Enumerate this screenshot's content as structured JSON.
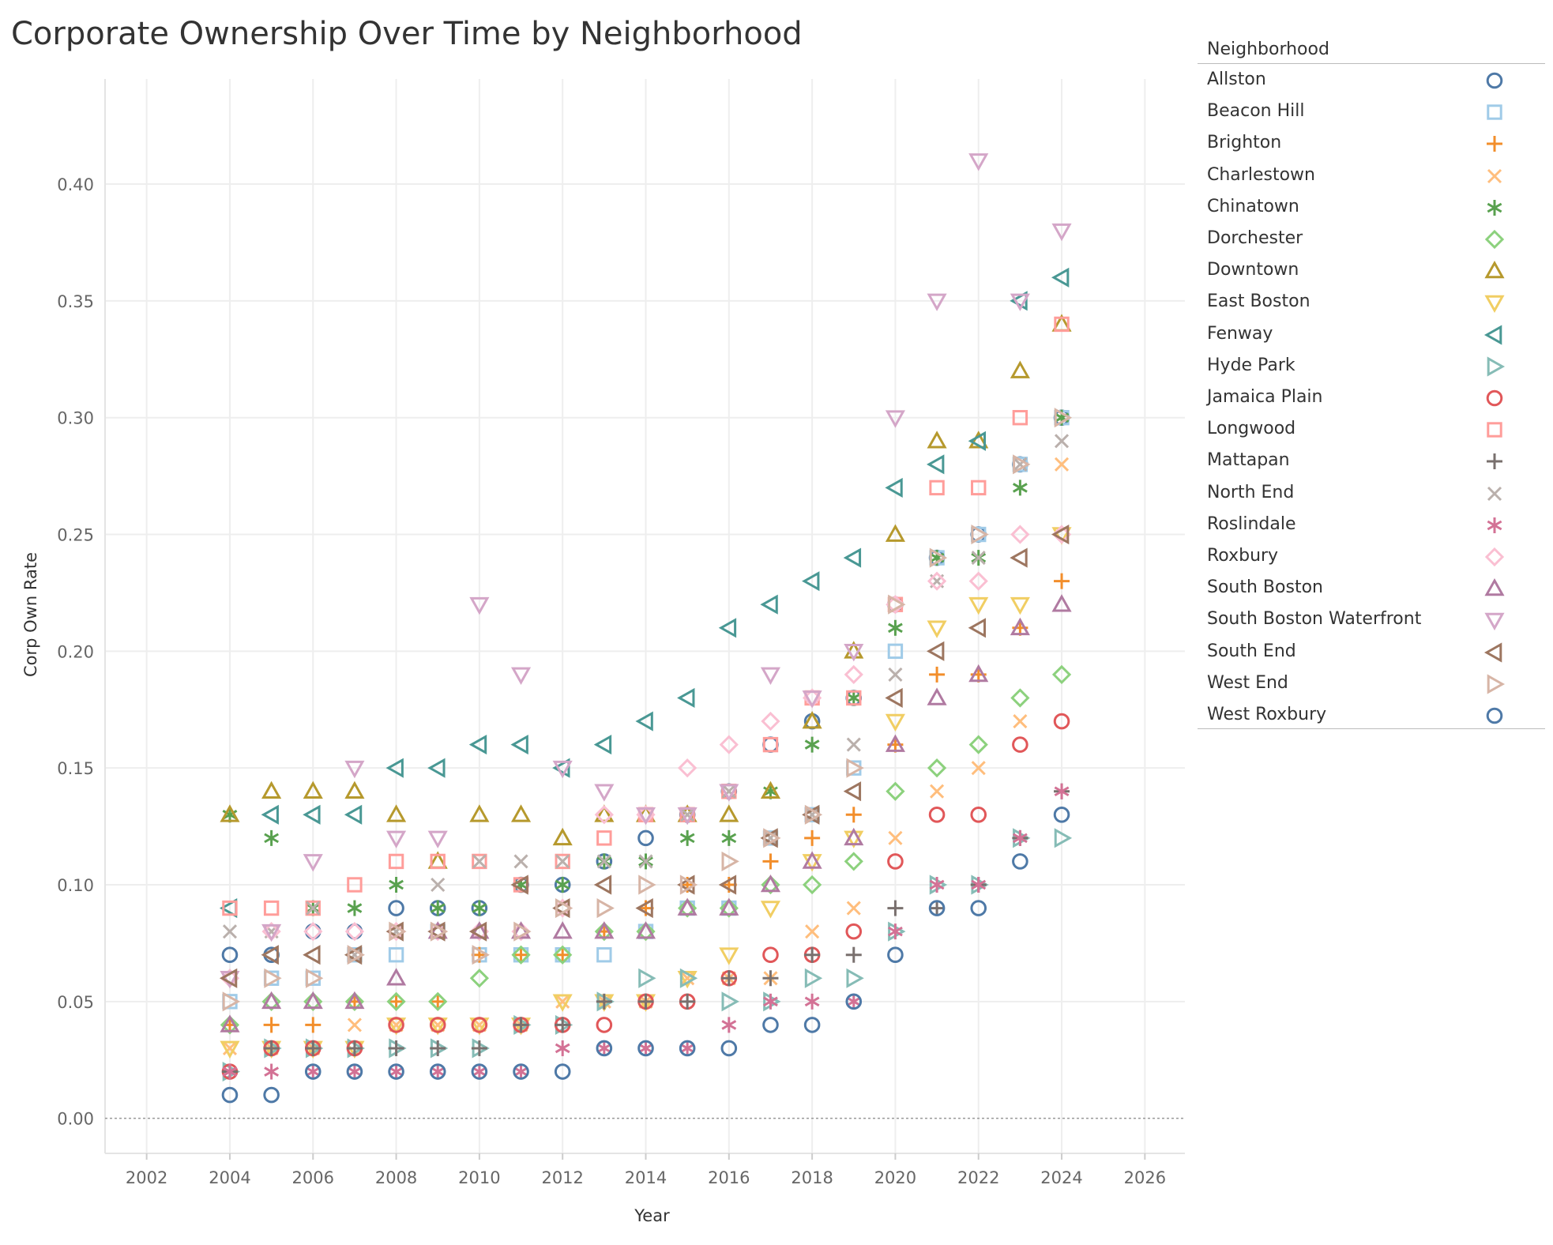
{
  "chart_data": {
    "type": "scatter",
    "title": "Corporate Ownership Over Time by Neighborhood",
    "xlabel": "Year",
    "ylabel": "Corp Own Rate",
    "xlim": [
      2001,
      2027
    ],
    "ylim": [
      -0.015,
      0.445
    ],
    "x_ticks": [
      2002,
      2004,
      2006,
      2008,
      2010,
      2012,
      2014,
      2016,
      2018,
      2020,
      2022,
      2024,
      2026
    ],
    "y_ticks": [
      0.0,
      0.05,
      0.1,
      0.15,
      0.2,
      0.25,
      0.3,
      0.35,
      0.4
    ],
    "y_tick_labels": [
      "0.00",
      "0.05",
      "0.10",
      "0.15",
      "0.20",
      "0.25",
      "0.30",
      "0.35",
      "0.40"
    ],
    "grid": true,
    "legend_title": "Neighborhood",
    "legend_position": "right",
    "x": [
      2004,
      2005,
      2006,
      2007,
      2008,
      2009,
      2010,
      2011,
      2012,
      2013,
      2014,
      2015,
      2016,
      2017,
      2018,
      2019,
      2020,
      2021,
      2022,
      2023,
      2024
    ],
    "series": [
      {
        "name": "Allston",
        "color": "#4e79a7",
        "marker": "circle",
        "values": [
          0.07,
          0.07,
          0.08,
          0.08,
          0.09,
          0.09,
          0.09,
          0.1,
          0.1,
          0.11,
          0.12,
          0.13,
          0.14,
          0.16,
          0.17,
          0.18,
          0.22,
          0.24,
          0.25,
          0.28,
          0.3
        ]
      },
      {
        "name": "Beacon Hill",
        "color": "#a0cbe8",
        "marker": "square",
        "values": [
          0.05,
          0.06,
          0.06,
          0.07,
          0.07,
          0.08,
          0.07,
          0.07,
          0.07,
          0.07,
          0.08,
          0.09,
          0.09,
          0.12,
          0.13,
          0.15,
          0.2,
          0.24,
          0.25,
          0.28,
          0.3
        ]
      },
      {
        "name": "Brighton",
        "color": "#f28e2b",
        "marker": "plus",
        "values": [
          0.04,
          0.04,
          0.04,
          0.05,
          0.05,
          0.05,
          0.07,
          0.07,
          0.07,
          0.08,
          0.09,
          0.1,
          0.1,
          0.11,
          0.12,
          0.13,
          0.16,
          0.19,
          0.19,
          0.21,
          0.23
        ]
      },
      {
        "name": "Charlestown",
        "color": "#ffbe7d",
        "marker": "x",
        "values": [
          0.03,
          0.03,
          0.03,
          0.04,
          0.04,
          0.04,
          0.04,
          0.04,
          0.05,
          0.05,
          0.05,
          0.06,
          0.06,
          0.06,
          0.08,
          0.09,
          0.12,
          0.14,
          0.15,
          0.17,
          0.28
        ]
      },
      {
        "name": "Chinatown",
        "color": "#59a14f",
        "marker": "asterisk",
        "values": [
          0.13,
          0.12,
          0.09,
          0.09,
          0.1,
          0.09,
          0.09,
          0.1,
          0.1,
          0.11,
          0.11,
          0.12,
          0.12,
          0.14,
          0.16,
          0.18,
          0.21,
          0.24,
          0.24,
          0.27,
          0.3
        ]
      },
      {
        "name": "Dorchester",
        "color": "#8cd17d",
        "marker": "diamond",
        "values": [
          0.04,
          0.05,
          0.05,
          0.05,
          0.05,
          0.05,
          0.06,
          0.07,
          0.07,
          0.08,
          0.08,
          0.09,
          0.09,
          0.1,
          0.1,
          0.11,
          0.14,
          0.15,
          0.16,
          0.18,
          0.19
        ]
      },
      {
        "name": "Downtown",
        "color": "#b6992d",
        "marker": "triangle-up",
        "values": [
          0.13,
          0.14,
          0.14,
          0.14,
          0.13,
          0.11,
          0.13,
          0.13,
          0.12,
          0.13,
          0.13,
          0.13,
          0.13,
          0.14,
          0.17,
          0.2,
          0.25,
          0.29,
          0.29,
          0.32,
          0.34
        ]
      },
      {
        "name": "East Boston",
        "color": "#f1ce63",
        "marker": "triangle-down",
        "values": [
          0.03,
          0.03,
          0.03,
          0.03,
          0.04,
          0.04,
          0.04,
          0.04,
          0.05,
          0.05,
          0.05,
          0.06,
          0.07,
          0.09,
          0.11,
          0.12,
          0.17,
          0.21,
          0.22,
          0.22,
          0.25
        ]
      },
      {
        "name": "Fenway",
        "color": "#499894",
        "marker": "triangle-left",
        "values": [
          0.09,
          0.13,
          0.13,
          0.13,
          0.15,
          0.15,
          0.16,
          0.16,
          0.15,
          0.16,
          0.17,
          0.18,
          0.21,
          0.22,
          0.23,
          0.24,
          0.27,
          0.28,
          0.29,
          0.35,
          0.36
        ]
      },
      {
        "name": "Hyde Park",
        "color": "#86bcb6",
        "marker": "triangle-right",
        "values": [
          0.02,
          0.03,
          0.03,
          0.03,
          0.03,
          0.03,
          0.03,
          0.04,
          0.04,
          0.05,
          0.06,
          0.06,
          0.05,
          0.05,
          0.06,
          0.06,
          0.08,
          0.1,
          0.1,
          0.12,
          0.12
        ]
      },
      {
        "name": "Jamaica Plain",
        "color": "#e15759",
        "marker": "circle",
        "values": [
          0.02,
          0.03,
          0.03,
          0.03,
          0.04,
          0.04,
          0.04,
          0.04,
          0.04,
          0.04,
          0.05,
          0.05,
          0.06,
          0.07,
          0.07,
          0.08,
          0.11,
          0.13,
          0.13,
          0.16,
          0.17
        ]
      },
      {
        "name": "Longwood",
        "color": "#ff9d9a",
        "marker": "square",
        "values": [
          0.09,
          0.09,
          0.09,
          0.1,
          0.11,
          0.11,
          0.11,
          0.1,
          0.11,
          0.12,
          0.13,
          0.13,
          0.14,
          0.16,
          0.18,
          0.18,
          0.22,
          0.27,
          0.27,
          0.3,
          0.34
        ]
      },
      {
        "name": "Mattapan",
        "color": "#79706e",
        "marker": "plus",
        "values": [
          0.02,
          0.03,
          0.03,
          0.03,
          0.03,
          0.03,
          0.03,
          0.04,
          0.04,
          0.05,
          0.05,
          0.05,
          0.06,
          0.06,
          0.07,
          0.07,
          0.09,
          0.09,
          0.1,
          0.12,
          0.14
        ]
      },
      {
        "name": "North End",
        "color": "#bab0ac",
        "marker": "x",
        "values": [
          0.08,
          0.08,
          0.09,
          0.07,
          0.08,
          0.1,
          0.11,
          0.11,
          0.11,
          0.11,
          0.11,
          0.13,
          0.14,
          0.12,
          0.13,
          0.16,
          0.19,
          0.23,
          0.24,
          0.28,
          0.29
        ]
      },
      {
        "name": "Roslindale",
        "color": "#d37295",
        "marker": "asterisk",
        "values": [
          0.02,
          0.02,
          0.02,
          0.02,
          0.02,
          0.02,
          0.02,
          0.02,
          0.03,
          0.03,
          0.03,
          0.03,
          0.04,
          0.05,
          0.05,
          0.05,
          0.08,
          0.1,
          0.1,
          0.12,
          0.14
        ]
      },
      {
        "name": "Roxbury",
        "color": "#fabfd2",
        "marker": "diamond",
        "values": [
          0.06,
          0.08,
          0.08,
          0.08,
          0.08,
          0.08,
          0.08,
          0.08,
          0.09,
          0.13,
          0.13,
          0.15,
          0.16,
          0.17,
          0.18,
          0.19,
          0.22,
          0.23,
          0.23,
          0.25,
          0.25
        ]
      },
      {
        "name": "South Boston",
        "color": "#b07aa1",
        "marker": "triangle-up",
        "values": [
          0.04,
          0.05,
          0.05,
          0.05,
          0.06,
          0.08,
          0.08,
          0.08,
          0.08,
          0.08,
          0.08,
          0.09,
          0.09,
          0.1,
          0.11,
          0.12,
          0.16,
          0.18,
          0.19,
          0.21,
          0.22
        ]
      },
      {
        "name": "South Boston Waterfront",
        "color": "#d4a6c8",
        "marker": "triangle-down",
        "values": [
          0.06,
          0.08,
          0.11,
          0.15,
          0.12,
          0.12,
          0.22,
          0.19,
          0.15,
          0.14,
          0.13,
          0.13,
          0.14,
          0.19,
          0.18,
          0.2,
          0.3,
          0.35,
          0.41,
          0.35,
          0.38
        ]
      },
      {
        "name": "South End",
        "color": "#9d7660",
        "marker": "triangle-left",
        "values": [
          0.06,
          0.07,
          0.07,
          0.07,
          0.08,
          0.08,
          0.08,
          0.1,
          0.09,
          0.1,
          0.09,
          0.1,
          0.1,
          0.12,
          0.13,
          0.14,
          0.18,
          0.2,
          0.21,
          0.24,
          0.25
        ]
      },
      {
        "name": "West End",
        "color": "#d7b5a6",
        "marker": "triangle-right",
        "values": [
          0.05,
          0.06,
          0.06,
          0.07,
          0.08,
          0.08,
          0.07,
          0.08,
          0.09,
          0.09,
          0.1,
          0.1,
          0.11,
          0.12,
          0.13,
          0.15,
          0.22,
          0.24,
          0.25,
          0.28,
          0.3
        ]
      },
      {
        "name": "West Roxbury",
        "color": "#4e79a7",
        "marker": "circle",
        "values": [
          0.01,
          0.01,
          0.02,
          0.02,
          0.02,
          0.02,
          0.02,
          0.02,
          0.02,
          0.03,
          0.03,
          0.03,
          0.03,
          0.04,
          0.04,
          0.05,
          0.07,
          0.09,
          0.09,
          0.11,
          0.13
        ]
      }
    ]
  }
}
